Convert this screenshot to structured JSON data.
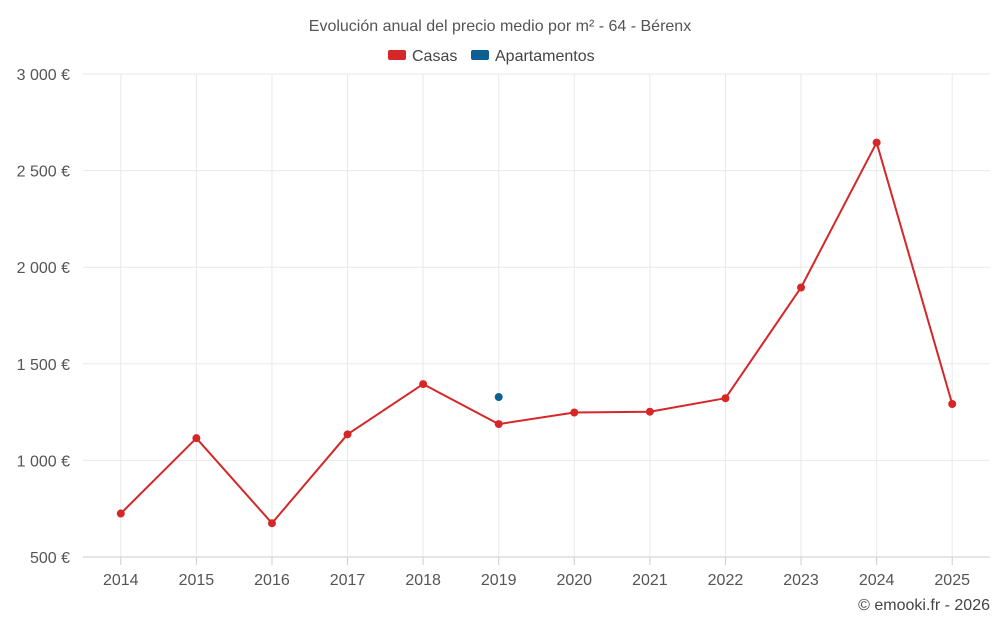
{
  "chart_data": {
    "type": "line",
    "title": "Evolución anual del precio medio por m² - 64 - Bérenx",
    "categories": [
      "2014",
      "2015",
      "2016",
      "2017",
      "2018",
      "2019",
      "2020",
      "2021",
      "2022",
      "2023",
      "2024",
      "2025"
    ],
    "ylim": [
      500,
      3000
    ],
    "yticks": [
      500,
      1000,
      1500,
      2000,
      2500,
      3000
    ],
    "ytick_labels": [
      "500 €",
      "1 000 €",
      "1 500 €",
      "2 000 €",
      "2 500 €",
      "3 000 €"
    ],
    "grid": true,
    "legend_position": "top-center",
    "series": [
      {
        "name": "Casas",
        "color": "#d62728",
        "values": [
          725,
          1115,
          675,
          1135,
          1395,
          1188,
          1248,
          1252,
          1322,
          1895,
          2645,
          1292
        ]
      },
      {
        "name": "Apartamentos",
        "color": "#0c5f92",
        "values": [
          null,
          null,
          null,
          null,
          null,
          1328,
          null,
          null,
          null,
          null,
          null,
          null
        ]
      }
    ],
    "credit": "© emooki.fr - 2026"
  }
}
